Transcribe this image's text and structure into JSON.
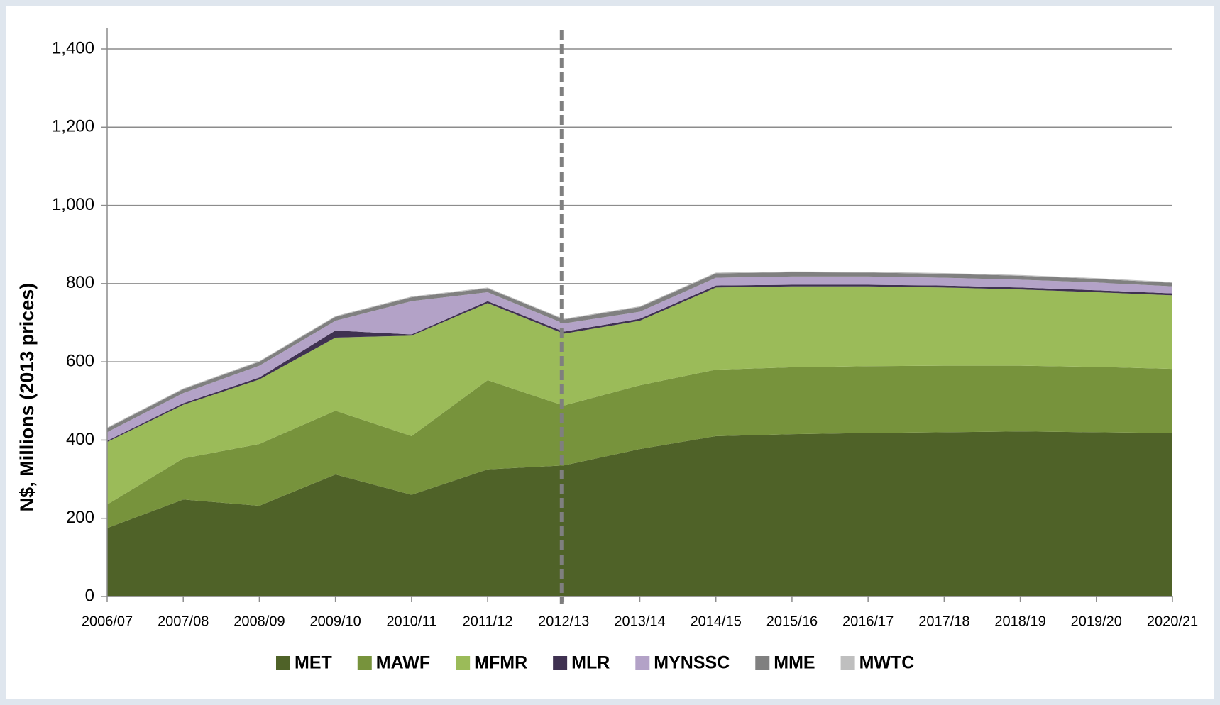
{
  "chart_data": {
    "type": "stacked_area",
    "y_label": "N$, Millions (2013 prices)",
    "categories": [
      "2006/07",
      "2007/08",
      "2008/09",
      "2009/10",
      "2010/11",
      "2011/12",
      "2012/13",
      "2013/14",
      "2014/15",
      "2015/16",
      "2016/17",
      "2017/18",
      "2018/19",
      "2019/20",
      "2020/21"
    ],
    "series": [
      {
        "name": "MET",
        "color": "#4f6228",
        "values": [
          175,
          248,
          232,
          312,
          260,
          325,
          335,
          377,
          410,
          415,
          418,
          420,
          422,
          420,
          418
        ]
      },
      {
        "name": "MAWF",
        "color": "#77933c",
        "values": [
          60,
          105,
          158,
          163,
          150,
          228,
          153,
          163,
          170,
          171,
          171,
          170,
          168,
          167,
          164
        ]
      },
      {
        "name": "MFMR",
        "color": "#9bbb59",
        "values": [
          160,
          137,
          165,
          187,
          257,
          197,
          184,
          165,
          210,
          207,
          204,
          200,
          195,
          191,
          188
        ]
      },
      {
        "name": "MLR",
        "color": "#3f3151",
        "values": [
          3,
          4,
          5,
          18,
          3,
          5,
          5,
          5,
          5,
          4,
          4,
          5,
          5,
          5,
          5
        ]
      },
      {
        "name": "MYNSSC",
        "color": "#b3a2c7",
        "values": [
          22,
          26,
          30,
          25,
          85,
          23,
          21,
          18,
          20,
          21,
          21,
          20,
          20,
          20,
          18
        ]
      },
      {
        "name": "MME",
        "color": "#808080",
        "values": [
          10,
          10,
          10,
          10,
          10,
          10,
          10,
          12,
          11,
          11,
          10,
          10,
          10,
          9,
          9
        ]
      },
      {
        "name": "MWTC",
        "color": "#bfbfbf",
        "values": [
          2,
          2,
          2,
          2,
          2,
          2,
          2,
          2,
          2,
          2,
          2,
          2,
          2,
          2,
          2
        ]
      }
    ],
    "ylim": [
      0,
      1400
    ],
    "yticks": [
      0,
      200,
      400,
      600,
      800,
      {
        "value": 1000,
        "label": "1,000"
      },
      {
        "value": 1200,
        "label": "1,200"
      },
      {
        "value": 1400,
        "label": "1,400"
      }
    ],
    "grid": true,
    "legend": "bottom"
  }
}
